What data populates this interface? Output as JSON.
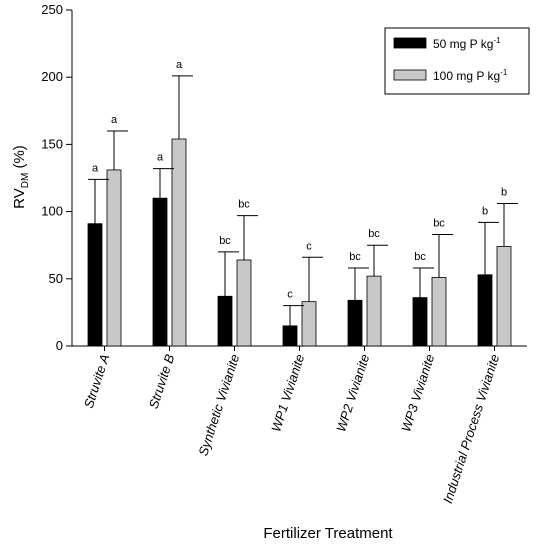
{
  "chart_data": {
    "type": "bar",
    "categories": [
      "Struvite A",
      "Struvite B",
      "Synthetic Vivianite",
      "WP1 Vivianite",
      "WP2 Vivianite",
      "WP3 Vivianite",
      "Industrial Process Vivianite"
    ],
    "series": [
      {
        "name": "50 mg P kg",
        "name_sup": "-1",
        "color": "#000000",
        "values": [
          91,
          110,
          37,
          15,
          34,
          36,
          53
        ],
        "errors": [
          33,
          22,
          33,
          15,
          24,
          22,
          39
        ],
        "labels": [
          "a",
          "a",
          "bc",
          "c",
          "bc",
          "bc",
          "b"
        ]
      },
      {
        "name": "100 mg P kg",
        "name_sup": "-1",
        "color": "#c8c8c8",
        "values": [
          131,
          154,
          64,
          33,
          52,
          51,
          74
        ],
        "errors": [
          29,
          47,
          33,
          33,
          23,
          32,
          32
        ],
        "labels": [
          "a",
          "a",
          "bc",
          "c",
          "bc",
          "bc",
          "b"
        ]
      }
    ],
    "title": "",
    "xlabel": "Fertilizer Treatment",
    "ylabel_main": "RV",
    "ylabel_sub": "DM",
    "ylabel_unit": " (%)",
    "ylim": [
      0,
      250
    ],
    "yticks": [
      0,
      50,
      100,
      150,
      200,
      250
    ],
    "legend_position": "top-right",
    "grid": false
  }
}
